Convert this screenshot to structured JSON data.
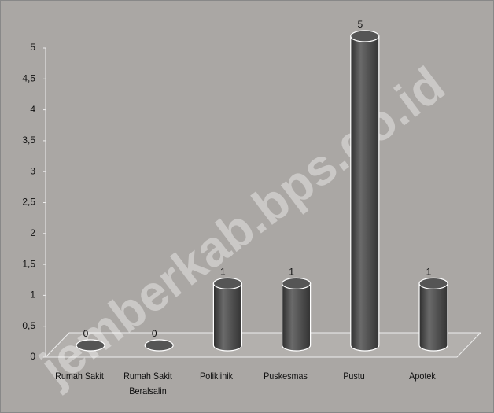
{
  "chart_data": {
    "type": "bar",
    "categories": [
      "Rumah Sakit",
      "Rumah Sakit Beralsalin",
      "Poliklinik",
      "Puskesmas",
      "Pustu",
      "Apotek"
    ],
    "values": [
      0,
      0,
      1,
      1,
      5,
      1
    ],
    "color": "#4a4a4a",
    "ylim": [
      0,
      5
    ],
    "yticks": [
      0,
      {
        "value": 0.5,
        "label": "0,5"
      },
      1,
      {
        "value": 1.5,
        "label": "1,5"
      },
      2,
      {
        "value": 2.5,
        "label": "2,5"
      },
      3,
      {
        "value": 3.5,
        "label": "3,5"
      },
      4,
      {
        "value": 4.5,
        "label": "4,5"
      },
      5
    ],
    "watermark": "jemberkab.bps.go.id"
  }
}
